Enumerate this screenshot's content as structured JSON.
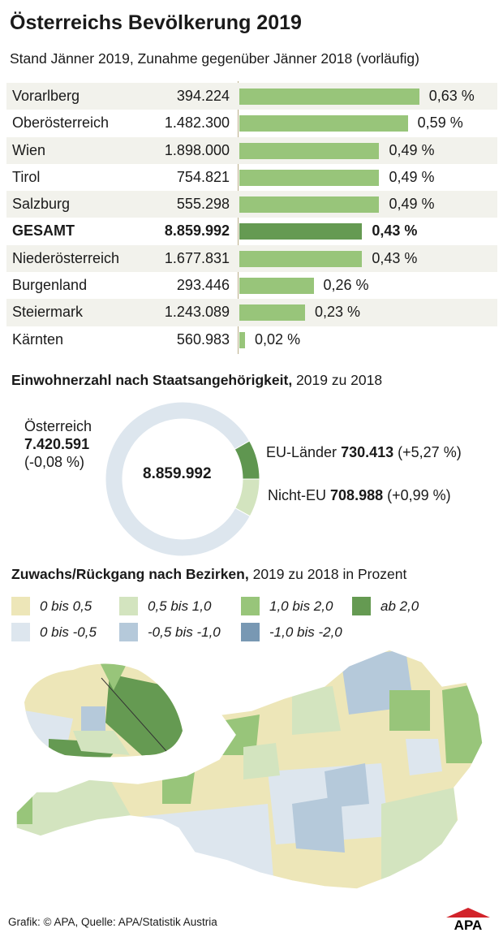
{
  "title": "Österreichs Bevölkerung 2019",
  "subtitle": "Stand Jänner 2019, Zunahme gegenüber Jänner 2018 (vorläufig)",
  "chart_data": [
    {
      "type": "bar",
      "title": "Österreichs Bevölkerung 2019",
      "subtitle": "Stand Jänner 2019, Zunahme gegenüber Jänner 2018 (vorläufig)",
      "rows": [
        {
          "name": "Vorarlberg",
          "population": "394.224",
          "change": 0.63,
          "label": "0,63 %"
        },
        {
          "name": "Oberösterreich",
          "population": "1.482.300",
          "change": 0.59,
          "label": "0,59 %"
        },
        {
          "name": "Wien",
          "population": "1.898.000",
          "change": 0.49,
          "label": "0,49 %"
        },
        {
          "name": "Tirol",
          "population": "754.821",
          "change": 0.49,
          "label": "0,49 %"
        },
        {
          "name": "Salzburg",
          "population": "555.298",
          "change": 0.49,
          "label": "0,49 %"
        },
        {
          "name": "GESAMT",
          "population": "8.859.992",
          "change": 0.43,
          "label": "0,43 %",
          "highlight": true
        },
        {
          "name": "Niederösterreich",
          "population": "1.677.831",
          "change": 0.43,
          "label": "0,43 %"
        },
        {
          "name": "Burgenland",
          "population": "293.446",
          "change": 0.26,
          "label": "0,26 %"
        },
        {
          "name": "Steiermark",
          "population": "1.243.089",
          "change": 0.23,
          "label": "0,23 %"
        },
        {
          "name": "Kärnten",
          "population": "560.983",
          "change": 0.02,
          "label": "0,02 %"
        }
      ],
      "colors": {
        "bar": "#98c57a",
        "highlight": "#659a52"
      }
    },
    {
      "type": "pie",
      "title_bold": "Einwohnerzahl nach Staatsangehörigkeit,",
      "title_rest": " 2019 zu 2018",
      "center": "8.859.992",
      "slices": [
        {
          "name": "Österreich",
          "value": 7420591,
          "value_label": "7.420.591",
          "change": "(-0,08 %)",
          "color": "#dde6ee"
        },
        {
          "name": "EU-Länder",
          "value": 730413,
          "value_label": "730.413",
          "change": "(+5,27 %)",
          "color": "#5f9650"
        },
        {
          "name": "Nicht-EU",
          "value": 708988,
          "value_label": "708.988",
          "change": "(+0,99 %)",
          "color": "#d3e4bf"
        }
      ]
    },
    {
      "type": "map",
      "title_bold": "Zuwachs/Rückgang nach Bezirken,",
      "title_rest": " 2019 zu 2018 in Prozent",
      "legend": [
        {
          "label": "0 bis 0,5",
          "color": "#ede6b8"
        },
        {
          "label": "0,5 bis 1,0",
          "color": "#d3e4bf"
        },
        {
          "label": "1,0 bis 2,0",
          "color": "#98c57a"
        },
        {
          "label": "ab 2,0",
          "color": "#659a52"
        },
        {
          "label": "0 bis -0,5",
          "color": "#dde6ee"
        },
        {
          "label": "-0,5 bis -1,0",
          "color": "#b5c9da"
        },
        {
          "label": "-1,0 bis -2,0",
          "color": "#7898b3"
        }
      ]
    }
  ],
  "footer": "Grafik: © APA, Quelle: APA/Statistik Austria",
  "logo": "APA"
}
